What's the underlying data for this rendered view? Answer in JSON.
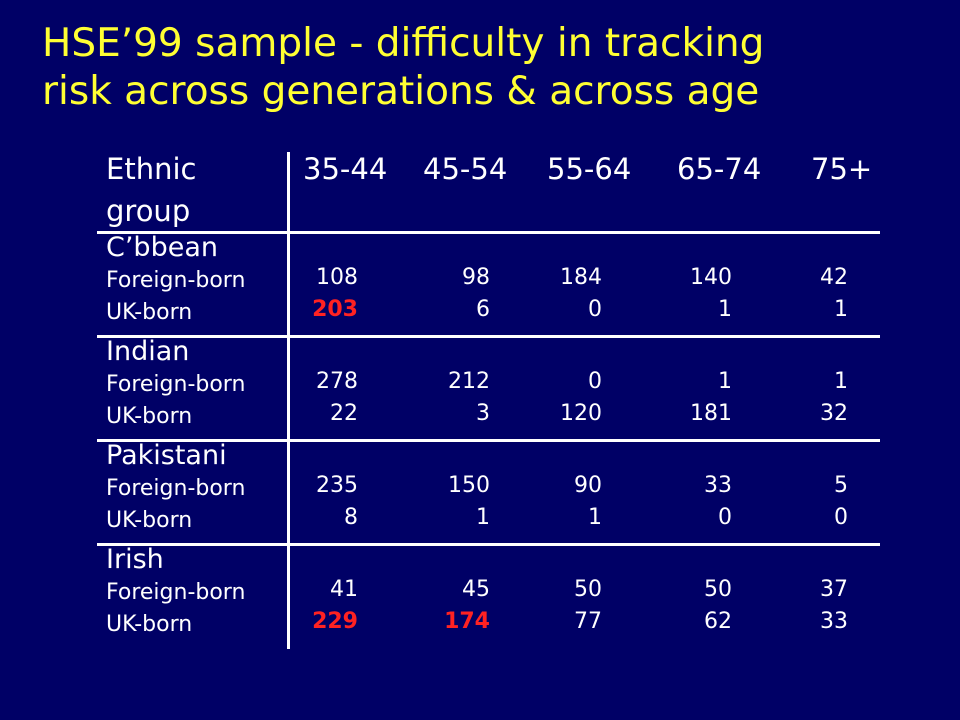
{
  "title": {
    "line1": "HSE’99 sample - difficulty in tracking",
    "line2": "risk across generations & across age"
  },
  "table": {
    "header": {
      "group_line1": "Ethnic",
      "group_line2": "group",
      "ages": [
        "35-44",
        "45-54",
        "55-64",
        "65-74",
        "75+"
      ]
    },
    "groups": [
      {
        "name": "C’bbean",
        "rows": [
          {
            "label": "Foreign-born",
            "values": [
              "108",
              "98",
              "184",
              "140",
              "42"
            ],
            "highlight": [
              false,
              false,
              false,
              false,
              false
            ]
          },
          {
            "label": "UK-born",
            "values": [
              "203",
              "6",
              "0",
              "1",
              "1"
            ],
            "highlight": [
              true,
              false,
              false,
              false,
              false
            ]
          }
        ]
      },
      {
        "name": "Indian",
        "rows": [
          {
            "label": "Foreign-born",
            "values": [
              "278",
              "212",
              "0",
              "1",
              "1"
            ],
            "highlight": [
              false,
              false,
              false,
              false,
              false
            ]
          },
          {
            "label": "UK-born",
            "values": [
              "22",
              "3",
              "120",
              "181",
              "32"
            ],
            "highlight": [
              false,
              false,
              false,
              false,
              false
            ]
          }
        ]
      },
      {
        "name": "Pakistani",
        "rows": [
          {
            "label": "Foreign-born",
            "values": [
              "235",
              "150",
              "90",
              "33",
              "5"
            ],
            "highlight": [
              false,
              false,
              false,
              false,
              false
            ]
          },
          {
            "label": "UK-born",
            "values": [
              "8",
              "1",
              "1",
              "0",
              "0"
            ],
            "highlight": [
              false,
              false,
              false,
              false,
              false
            ]
          }
        ]
      },
      {
        "name": "Irish",
        "rows": [
          {
            "label": "Foreign-born",
            "values": [
              "41",
              "45",
              "50",
              "50",
              "37"
            ],
            "highlight": [
              false,
              false,
              false,
              false,
              false
            ]
          },
          {
            "label": "UK-born",
            "values": [
              "229",
              "174",
              "77",
              "62",
              "33"
            ],
            "highlight": [
              true,
              true,
              false,
              false,
              false
            ]
          }
        ]
      }
    ]
  },
  "colors": {
    "background": "#000066",
    "title": "#ffff33",
    "text": "#ffffff",
    "highlight": "#ff2222"
  }
}
